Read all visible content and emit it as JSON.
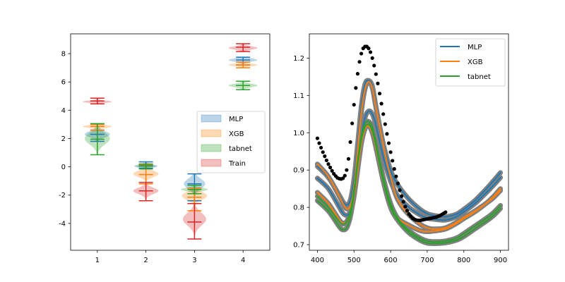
{
  "chart_data": [
    {
      "type": "violin",
      "xlim": [
        0.45,
        4.55
      ],
      "ylim": [
        -5.9,
        9.4
      ],
      "xticks": [
        1,
        2,
        3,
        4
      ],
      "yticks": [
        -4,
        -2,
        0,
        2,
        4,
        6,
        8
      ],
      "legend": {
        "placement": "center-right",
        "entries": [
          {
            "label": "MLP",
            "color": "#1f77b4"
          },
          {
            "label": "XGB",
            "color": "#ff7f0e"
          },
          {
            "label": "tabnet",
            "color": "#2ca02c"
          },
          {
            "label": "Train",
            "color": "#d62728"
          }
        ]
      },
      "series": [
        {
          "name": "MLP",
          "color": "#1f77b4",
          "groups": [
            {
              "x": 1,
              "min": 1.8,
              "max": 2.6,
              "median": 2.3,
              "mode": 2.3,
              "spread": 0.22,
              "width": 0.26
            },
            {
              "x": 2,
              "min": -0.1,
              "max": 0.35,
              "median": 0.1,
              "mode": 0.05,
              "spread": 0.12,
              "width": 0.24
            },
            {
              "x": 3,
              "min": -2.4,
              "max": -0.5,
              "median": -1.2,
              "mode": -1.2,
              "spread": 0.35,
              "width": 0.22
            },
            {
              "x": 4,
              "min": 7.2,
              "max": 7.75,
              "median": 7.55,
              "mode": 7.55,
              "spread": 0.12,
              "width": 0.3
            }
          ]
        },
        {
          "name": "XGB",
          "color": "#ff7f0e",
          "groups": [
            {
              "x": 1,
              "min": 2.6,
              "max": 3.0,
              "median": 2.85,
              "mode": 2.85,
              "spread": 0.1,
              "width": 0.3
            },
            {
              "x": 2,
              "min": -1.2,
              "max": 0.15,
              "median": -0.55,
              "mode": -0.5,
              "spread": 0.22,
              "width": 0.26
            },
            {
              "x": 3,
              "min": -3.1,
              "max": -1.5,
              "median": -2.15,
              "mode": -2.05,
              "spread": 0.28,
              "width": 0.26
            },
            {
              "x": 4,
              "min": 7.0,
              "max": 7.4,
              "median": 7.2,
              "mode": 7.2,
              "spread": 0.09,
              "width": 0.3
            }
          ]
        },
        {
          "name": "tabnet",
          "color": "#2ca02c",
          "groups": [
            {
              "x": 1,
              "min": 0.85,
              "max": 3.05,
              "median": 1.95,
              "mode": 2.0,
              "spread": 0.42,
              "width": 0.26
            },
            {
              "x": 2,
              "min": -0.15,
              "max": 0.2,
              "median": 0.05,
              "mode": 0.05,
              "spread": 0.07,
              "width": 0.22
            },
            {
              "x": 3,
              "min": -1.9,
              "max": -1.3,
              "median": -1.6,
              "mode": -1.6,
              "spread": 0.12,
              "width": 0.28
            },
            {
              "x": 4,
              "min": 5.45,
              "max": 6.05,
              "median": 5.75,
              "mode": 5.75,
              "spread": 0.12,
              "width": 0.3
            }
          ]
        },
        {
          "name": "Train",
          "color": "#d62728",
          "groups": [
            {
              "x": 1,
              "min": 4.45,
              "max": 4.85,
              "median": 4.65,
              "mode": 4.6,
              "spread": 0.08,
              "width": 0.3
            },
            {
              "x": 2,
              "min": -2.4,
              "max": -1.1,
              "median": -1.7,
              "mode": -1.7,
              "spread": 0.22,
              "width": 0.26
            },
            {
              "x": 3,
              "min": -5.1,
              "max": -2.6,
              "median": -3.9,
              "mode": -3.7,
              "spread": 0.45,
              "width": 0.24
            },
            {
              "x": 4,
              "min": 8.15,
              "max": 8.7,
              "median": 8.45,
              "mode": 8.4,
              "spread": 0.12,
              "width": 0.3
            }
          ]
        }
      ]
    },
    {
      "type": "line",
      "xlim": [
        378,
        922
      ],
      "ylim": [
        0.685,
        1.265
      ],
      "xticks": [
        400,
        500,
        600,
        700,
        800,
        900
      ],
      "yticks": [
        0.7,
        0.8,
        0.9,
        1.0,
        1.1,
        1.2
      ],
      "band_color": "#808080",
      "legend": {
        "placement": "top-right",
        "entries": [
          {
            "label": "MLP",
            "color": "#1f77b4"
          },
          {
            "label": "XGB",
            "color": "#ff7f0e"
          },
          {
            "label": "tabnet",
            "color": "#2ca02c"
          }
        ]
      },
      "scatter": {
        "color": "#000000",
        "x": [
          400,
          405,
          410,
          415,
          420,
          425,
          430,
          435,
          440,
          445,
          450,
          455,
          460,
          465,
          470,
          475,
          480,
          485,
          490,
          495,
          500,
          505,
          510,
          515,
          520,
          525,
          530,
          535,
          540,
          545,
          550,
          555,
          560,
          565,
          570,
          575,
          580,
          585,
          590,
          595,
          600,
          605,
          610,
          615,
          620,
          625,
          630,
          635,
          640,
          645,
          650,
          655,
          660,
          665,
          670,
          675,
          680,
          685,
          690,
          695,
          700,
          705,
          710,
          715,
          720,
          725,
          730,
          735,
          740,
          745,
          750
        ],
        "y": [
          0.985,
          0.972,
          0.96,
          0.948,
          0.937,
          0.926,
          0.916,
          0.907,
          0.898,
          0.89,
          0.884,
          0.879,
          0.877,
          0.876,
          0.878,
          0.885,
          0.9,
          0.93,
          0.975,
          1.025,
          1.075,
          1.12,
          1.158,
          1.19,
          1.212,
          1.226,
          1.231,
          1.231,
          1.226,
          1.216,
          1.2,
          1.18,
          1.157,
          1.132,
          1.105,
          1.078,
          1.05,
          1.023,
          0.997,
          0.972,
          0.948,
          0.925,
          0.903,
          0.883,
          0.864,
          0.846,
          0.83,
          0.815,
          0.802,
          0.791,
          0.782,
          0.776,
          0.771,
          0.768,
          0.766,
          0.765,
          0.765,
          0.766,
          0.767,
          0.768,
          0.769,
          0.77,
          0.771,
          0.772,
          0.773,
          0.774,
          0.776,
          0.778,
          0.781,
          0.784,
          0.787
        ]
      },
      "series": [
        {
          "name": "MLP",
          "color": "#1f77b4",
          "x": [
            400,
            430,
            460,
            470,
            480,
            490,
            500,
            510,
            520,
            530,
            540,
            550,
            560,
            580,
            600,
            620,
            650,
            680,
            700,
            720,
            750,
            780,
            800,
            830,
            860,
            880,
            900
          ],
          "curves": [
            [
              0.878,
              0.85,
              0.8,
              0.784,
              0.779,
              0.79,
              0.84,
              0.915,
              0.99,
              1.04,
              1.058,
              1.05,
              1.02,
              0.935,
              0.87,
              0.83,
              0.8,
              0.78,
              0.771,
              0.768,
              0.766,
              0.775,
              0.788,
              0.81,
              0.838,
              0.858,
              0.88
            ],
            [
              0.91,
              0.88,
              0.832,
              0.815,
              0.806,
              0.82,
              0.875,
              0.97,
              1.07,
              1.13,
              1.14,
              1.125,
              1.07,
              0.97,
              0.9,
              0.86,
              0.822,
              0.795,
              0.783,
              0.778,
              0.775,
              0.782,
              0.795,
              0.818,
              0.848,
              0.87,
              0.893
            ]
          ]
        },
        {
          "name": "XGB",
          "color": "#ff7f0e",
          "x": [
            400,
            430,
            460,
            470,
            480,
            490,
            500,
            510,
            520,
            530,
            540,
            550,
            560,
            580,
            600,
            620,
            650,
            680,
            700,
            720,
            750,
            780,
            800,
            830,
            860,
            880,
            900
          ],
          "curves": [
            [
              0.916,
              0.882,
              0.83,
              0.81,
              0.796,
              0.804,
              0.855,
              0.955,
              1.055,
              1.117,
              1.137,
              1.12,
              1.068,
              0.968,
              0.88,
              0.82,
              0.78,
              0.755,
              0.745,
              0.742,
              0.745,
              0.76,
              0.773,
              0.79,
              0.81,
              0.825,
              0.845
            ],
            [
              0.84,
              0.81,
              0.766,
              0.758,
              0.762,
              0.78,
              0.828,
              0.9,
              0.97,
              1.01,
              1.018,
              1.0,
              0.96,
              0.87,
              0.8,
              0.77,
              0.752,
              0.738,
              0.735,
              0.737,
              0.742,
              0.757,
              0.77,
              0.788,
              0.81,
              0.828,
              0.85
            ]
          ]
        },
        {
          "name": "tabnet",
          "color": "#2ca02c",
          "x": [
            400,
            430,
            460,
            470,
            480,
            490,
            500,
            510,
            520,
            530,
            540,
            550,
            560,
            580,
            600,
            620,
            650,
            680,
            700,
            720,
            750,
            780,
            800,
            830,
            860,
            880,
            900
          ],
          "curves": [
            [
              0.83,
              0.8,
              0.762,
              0.755,
              0.762,
              0.79,
              0.845,
              0.925,
              0.99,
              1.025,
              1.03,
              1.015,
              0.975,
              0.88,
              0.81,
              0.77,
              0.738,
              0.718,
              0.71,
              0.708,
              0.71,
              0.718,
              0.73,
              0.75,
              0.77,
              0.785,
              0.805
            ],
            [
              0.818,
              0.79,
              0.748,
              0.74,
              0.745,
              0.775,
              0.835,
              0.915,
              0.98,
              1.015,
              1.022,
              1.005,
              0.965,
              0.87,
              0.8,
              0.765,
              0.732,
              0.712,
              0.704,
              0.703,
              0.705,
              0.712,
              0.722,
              0.742,
              0.762,
              0.777,
              0.797
            ]
          ]
        }
      ]
    }
  ]
}
